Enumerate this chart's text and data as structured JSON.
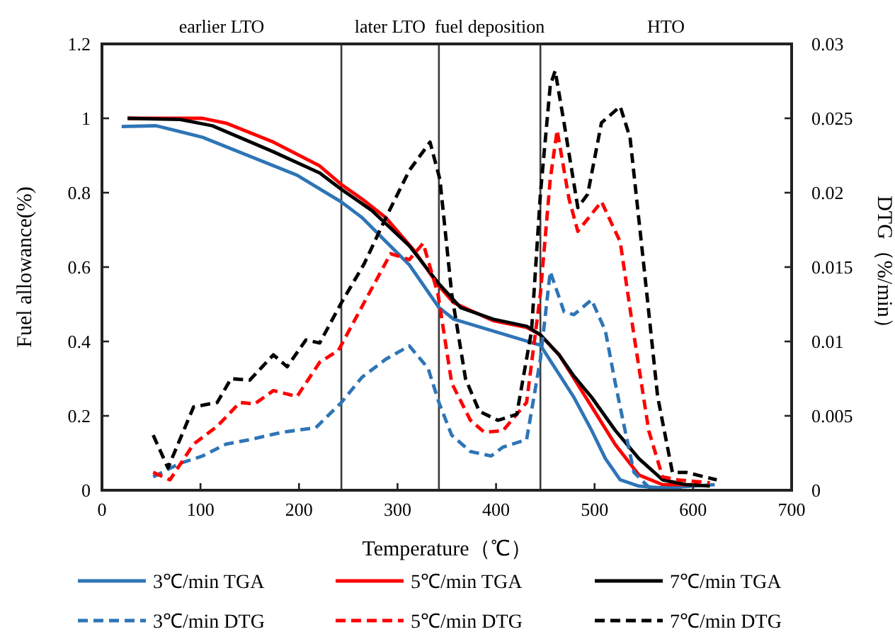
{
  "chart_data": {
    "type": "line",
    "xlabel": "Temperature（℃）",
    "ylabel": "Fuel allowance(%)",
    "y2label": "DTG（%/min）",
    "xlim": [
      0,
      700
    ],
    "xticks": [
      0,
      100,
      200,
      300,
      400,
      500,
      600,
      700
    ],
    "ylim": [
      0,
      1.2
    ],
    "yticks": [
      0,
      0.2,
      0.4,
      0.6,
      0.8,
      1,
      1.2
    ],
    "y2lim": [
      0,
      0.03
    ],
    "y2ticks": [
      0,
      0.005,
      0.01,
      0.015,
      0.02,
      0.025,
      0.03
    ],
    "grid": false,
    "legend": "bottom",
    "ref_lines": [
      {
        "axis": "x",
        "value": 243,
        "color": "#3a3a3a"
      },
      {
        "axis": "x",
        "value": 342,
        "color": "#3a3a3a"
      },
      {
        "axis": "x",
        "value": 445,
        "color": "#3a3a3a"
      }
    ],
    "annotations": [
      "earlier LTO",
      "later LTO",
      "fuel deposition",
      "HTO"
    ],
    "series": [
      {
        "name": "3℃/min TGA",
        "color": "#2e75b6",
        "line_style": "solid",
        "x": [
          20,
          55,
          102,
          150,
          198,
          243,
          264,
          288,
          312,
          342,
          357,
          397,
          445,
          479,
          497,
          511,
          526,
          545,
          569,
          622
        ],
        "values": [
          0.978,
          0.98,
          0.949,
          0.898,
          0.847,
          0.775,
          0.733,
          0.669,
          0.606,
          0.491,
          0.46,
          0.428,
          0.39,
          0.25,
          0.161,
          0.085,
          0.028,
          0.011,
          0.006,
          0.015
        ]
      },
      {
        "name": "5℃/min TGA",
        "color": "#ff0000",
        "line_style": "solid",
        "x": [
          26,
          102,
          126,
          174,
          221,
          243,
          264,
          288,
          317,
          342,
          357,
          397,
          431,
          445,
          464,
          479,
          497,
          521,
          545,
          569,
          607
        ],
        "values": [
          1.0,
          1.0,
          0.987,
          0.936,
          0.872,
          0.822,
          0.783,
          0.733,
          0.644,
          0.549,
          0.504,
          0.456,
          0.438,
          0.418,
          0.364,
          0.301,
          0.225,
          0.123,
          0.041,
          0.015,
          0.015
        ]
      },
      {
        "name": "7℃/min TGA",
        "color": "#000000",
        "line_style": "solid",
        "x": [
          26,
          79,
          112,
          174,
          221,
          243,
          274,
          312,
          342,
          364,
          397,
          431,
          445,
          464,
          479,
          497,
          521,
          545,
          569,
          593,
          617
        ],
        "values": [
          1.0,
          0.997,
          0.98,
          0.91,
          0.853,
          0.809,
          0.752,
          0.657,
          0.555,
          0.491,
          0.46,
          0.441,
          0.418,
          0.364,
          0.307,
          0.25,
          0.161,
          0.085,
          0.028,
          0.015,
          0.011
        ]
      },
      {
        "name": "3℃/min DTG",
        "color": "#2e75b6",
        "line_style": "dashed",
        "axis": "y2",
        "x": [
          52,
          79,
          102,
          126,
          150,
          183,
          217,
          243,
          264,
          288,
          312,
          331,
          342,
          355,
          374,
          395,
          407,
          431,
          445,
          455,
          469,
          479,
          497,
          511,
          521,
          531,
          540,
          555,
          593
        ],
        "values": [
          0.0009,
          0.0018,
          0.0023,
          0.0031,
          0.0034,
          0.0039,
          0.0042,
          0.0059,
          0.0076,
          0.0088,
          0.0097,
          0.0082,
          0.0059,
          0.0037,
          0.0026,
          0.0023,
          0.0029,
          0.0034,
          0.0088,
          0.0147,
          0.012,
          0.0118,
          0.0128,
          0.0107,
          0.0072,
          0.004,
          0.0012,
          0.0002,
          0.0001
        ]
      },
      {
        "name": "5℃/min DTG",
        "color": "#ff0000",
        "line_style": "dashed",
        "axis": "y2",
        "x": [
          52,
          69,
          93,
          117,
          140,
          155,
          174,
          198,
          221,
          240,
          266,
          293,
          312,
          326,
          341,
          355,
          374,
          388,
          407,
          431,
          445,
          455,
          462,
          474,
          483,
          507,
          526,
          540,
          555,
          569,
          584,
          617
        ],
        "values": [
          0.0012,
          0.0007,
          0.0031,
          0.0043,
          0.0059,
          0.0058,
          0.0067,
          0.0063,
          0.0086,
          0.0094,
          0.0126,
          0.0159,
          0.0155,
          0.0166,
          0.0132,
          0.0072,
          0.0047,
          0.0039,
          0.004,
          0.0059,
          0.0132,
          0.0209,
          0.0242,
          0.0196,
          0.0174,
          0.0194,
          0.0167,
          0.0104,
          0.004,
          0.0009,
          0.0007,
          0.0005
        ]
      },
      {
        "name": "7℃/min DTG",
        "color": "#000000",
        "line_style": "dashed",
        "axis": "y2",
        "x": [
          52,
          67,
          93,
          117,
          131,
          150,
          174,
          188,
          207,
          221,
          243,
          266,
          288,
          312,
          333,
          343,
          355,
          369,
          383,
          402,
          421,
          436,
          445,
          455,
          460,
          469,
          483,
          493,
          507,
          526,
          536,
          550,
          564,
          579,
          593,
          624
        ],
        "values": [
          0.0037,
          0.0015,
          0.0056,
          0.0059,
          0.0075,
          0.0074,
          0.0091,
          0.0083,
          0.0101,
          0.0099,
          0.0126,
          0.0152,
          0.0183,
          0.0215,
          0.0234,
          0.0209,
          0.0132,
          0.0075,
          0.0053,
          0.0047,
          0.0051,
          0.0107,
          0.0199,
          0.0272,
          0.0282,
          0.0247,
          0.019,
          0.0199,
          0.0247,
          0.0258,
          0.0237,
          0.0151,
          0.0063,
          0.0012,
          0.0012,
          0.0007
        ]
      }
    ]
  }
}
